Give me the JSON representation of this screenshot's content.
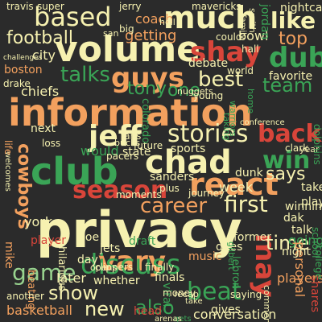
{
  "palette": {
    "background": "#2b2b2b",
    "cream": "#f6f1b0",
    "orange": "#f2a05e",
    "red": "#d8453a",
    "green": "#3aa456",
    "lightgreen": "#98d38e",
    "darkgreen": "#1f7b41",
    "yellow": "#f3e89a"
  },
  "words": [
    {
      "text": "privacy",
      "color": "cream"
    },
    {
      "text": "information",
      "color": "orange"
    },
    {
      "text": "volume",
      "color": "cream"
    },
    {
      "text": "much",
      "color": "cream"
    },
    {
      "text": "based",
      "color": "cream"
    },
    {
      "text": "club",
      "color": "green"
    },
    {
      "text": "chad",
      "color": "cream"
    },
    {
      "text": "react",
      "color": "orange"
    },
    {
      "text": "vary",
      "color": "orange"
    },
    {
      "text": "discuss",
      "color": "green"
    },
    {
      "text": "season",
      "color": "red"
    },
    {
      "text": "jeff",
      "color": "cream"
    },
    {
      "text": "stories",
      "color": "cream"
    },
    {
      "text": "guys",
      "color": "orange"
    },
    {
      "text": "shay",
      "color": "red"
    },
    {
      "text": "dub",
      "color": "green"
    },
    {
      "text": "like",
      "color": "cream"
    },
    {
      "text": "back",
      "color": "red"
    },
    {
      "text": "win",
      "color": "green"
    },
    {
      "text": "best",
      "color": "cream"
    },
    {
      "text": "may",
      "color": "red"
    },
    {
      "text": "beat",
      "color": "green"
    },
    {
      "text": "game",
      "color": "lightgreen"
    },
    {
      "text": "show",
      "color": "cream"
    },
    {
      "text": "new",
      "color": "cream"
    },
    {
      "text": "first",
      "color": "cream"
    },
    {
      "text": "career",
      "color": "orange"
    },
    {
      "text": "football",
      "color": "cream"
    },
    {
      "text": "talks",
      "color": "green"
    },
    {
      "text": "team",
      "color": "green"
    },
    {
      "text": "top",
      "color": "orange"
    },
    {
      "text": "time",
      "color": "cream"
    },
    {
      "text": "says",
      "color": "cream"
    },
    {
      "text": "cowboys",
      "color": "orange"
    },
    {
      "text": "also",
      "color": "green"
    },
    {
      "text": "conversation",
      "color": "cream"
    },
    {
      "text": "getting",
      "color": "orange"
    },
    {
      "text": "one",
      "color": "green"
    },
    {
      "text": "tony",
      "color": "green"
    },
    {
      "text": "coach",
      "color": "orange"
    },
    {
      "text": "later",
      "color": "cream"
    },
    {
      "text": "basketball",
      "color": "orange"
    },
    {
      "text": "going",
      "color": "green"
    },
    {
      "text": "players",
      "color": "orange"
    },
    {
      "text": "personal",
      "color": "orange"
    },
    {
      "text": "shares",
      "color": "red"
    },
    {
      "text": "york",
      "color": "cream"
    },
    {
      "text": "city",
      "color": "cream"
    },
    {
      "text": "boston",
      "color": "orange"
    },
    {
      "text": "chiefs",
      "color": "cream"
    },
    {
      "text": "next",
      "color": "cream"
    },
    {
      "text": "mike",
      "color": "orange"
    },
    {
      "text": "jets",
      "color": "cream"
    },
    {
      "text": "joe",
      "color": "cream"
    },
    {
      "text": "day",
      "color": "cream"
    },
    {
      "text": "music",
      "color": "orange"
    },
    {
      "text": "night",
      "color": "cream"
    },
    {
      "text": "week",
      "color": "cream"
    },
    {
      "text": "sports",
      "color": "cream"
    },
    {
      "text": "favorite",
      "color": "cream"
    },
    {
      "text": "debate",
      "color": "cream"
    },
    {
      "text": "bowl",
      "color": "cream"
    },
    {
      "text": "jordan",
      "color": "green"
    },
    {
      "text": "nightcap",
      "color": "cream"
    },
    {
      "text": "player",
      "color": "red"
    },
    {
      "text": "whether",
      "color": "cream"
    },
    {
      "text": "finals",
      "color": "cream"
    },
    {
      "text": "viral",
      "color": "green"
    },
    {
      "text": "gives",
      "color": "cream"
    },
    {
      "text": "play",
      "color": "cream"
    },
    {
      "text": "talk",
      "color": "cream"
    },
    {
      "text": "dak",
      "color": "cream"
    },
    {
      "text": "takes",
      "color": "cream"
    },
    {
      "text": "winning",
      "color": "cream"
    },
    {
      "text": "former",
      "color": "cream"
    },
    {
      "text": "does",
      "color": "cream"
    },
    {
      "text": "dunk",
      "color": "cream"
    },
    {
      "text": "sanders",
      "color": "cream"
    },
    {
      "text": "state",
      "color": "cream"
    },
    {
      "text": "would",
      "color": "green"
    },
    {
      "text": "hilarious",
      "color": "cream"
    },
    {
      "text": "moments",
      "color": "cream"
    },
    {
      "text": "money",
      "color": "cream"
    },
    {
      "text": "finally",
      "color": "cream"
    },
    {
      "text": "head",
      "color": "red"
    },
    {
      "text": "saying",
      "color": "cream"
    },
    {
      "text": "lebron",
      "color": "green"
    },
    {
      "text": "draft",
      "color": "green"
    },
    {
      "text": "clippers",
      "color": "cream"
    },
    {
      "text": "opens",
      "color": "cream"
    },
    {
      "text": "beating",
      "color": "orange"
    },
    {
      "text": "another",
      "color": "cream"
    },
    {
      "text": "super",
      "color": "cream"
    },
    {
      "text": "travis",
      "color": "cream"
    },
    {
      "text": "jerry",
      "color": "cream"
    },
    {
      "text": "mavericks",
      "color": "cream"
    },
    {
      "text": "hall",
      "color": "cream"
    },
    {
      "text": "could",
      "color": "cream"
    },
    {
      "text": "big",
      "color": "cream"
    },
    {
      "text": "san",
      "color": "cream"
    },
    {
      "text": "drake",
      "color": "cream"
    },
    {
      "text": "young",
      "color": "cream"
    },
    {
      "text": "world",
      "color": "cream"
    },
    {
      "text": "future",
      "color": "cream"
    },
    {
      "text": "pacers",
      "color": "cream"
    },
    {
      "text": "fans",
      "color": "cream"
    },
    {
      "text": "bucks",
      "color": "cream"
    },
    {
      "text": "colorado",
      "color": "green"
    },
    {
      "text": "loss",
      "color": "cream"
    },
    {
      "text": "plus",
      "color": "cream"
    },
    {
      "text": "journey",
      "color": "cream"
    },
    {
      "text": "clark",
      "color": "cream"
    },
    {
      "text": "year",
      "color": "cream"
    },
    {
      "text": "dolphins",
      "color": "green"
    },
    {
      "text": "warriors",
      "color": "green"
    },
    {
      "text": "taking",
      "color": "green"
    },
    {
      "text": "college",
      "color": "green"
    },
    {
      "text": "school",
      "color": "green"
    },
    {
      "text": "comments",
      "color": "cream"
    },
    {
      "text": "nuggets",
      "color": "cream"
    },
    {
      "text": "welcomes",
      "color": "cream"
    },
    {
      "text": "gets",
      "color": "green"
    },
    {
      "text": "recap",
      "color": "cream"
    },
    {
      "text": "arenas",
      "color": "cream"
    },
    {
      "text": "take",
      "color": "cream"
    },
    {
      "text": "life",
      "color": "orange"
    },
    {
      "text": "hell",
      "color": "cream"
    },
    {
      "text": "smith",
      "color": "cream"
    },
    {
      "text": "home",
      "color": "green"
    },
    {
      "text": "gilbert",
      "color": "green"
    },
    {
      "text": "family",
      "color": "cream"
    },
    {
      "text": "challenges",
      "color": "cream"
    },
    {
      "text": "conference",
      "color": "cream"
    }
  ]
}
